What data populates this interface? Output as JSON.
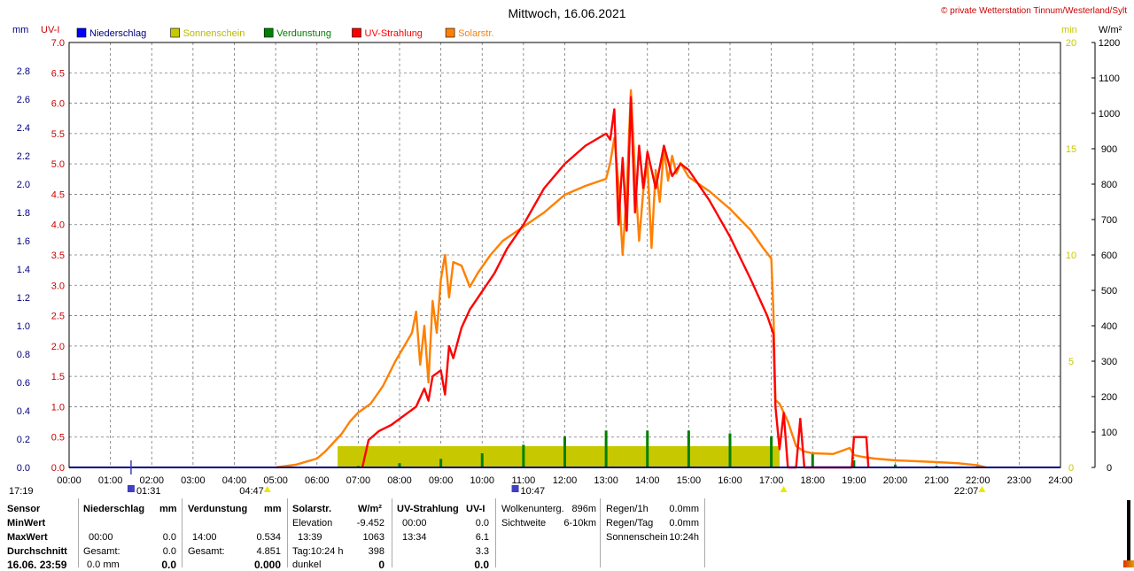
{
  "title": "Mittwoch, 16.06.2021",
  "copyright": "© private Wetterstation Tinnum/Westerland/Sylt",
  "units": {
    "left_outer": "mm",
    "left_inner": "UV-I",
    "right_inner": "min",
    "right_outer": "W/m²"
  },
  "legend": [
    {
      "label": "Niederschlag",
      "color": "#0000ff"
    },
    {
      "label": "Sonnenschein",
      "color": "#c8c800"
    },
    {
      "label": "Verdunstung",
      "color": "#008000"
    },
    {
      "label": "UV-Strahlung",
      "color": "#ff0000"
    },
    {
      "label": "Solarstr.",
      "color": "#ff8000"
    }
  ],
  "markers": [
    {
      "t": "17:19",
      "h": 17.3,
      "color": "#e8e800"
    },
    {
      "t": "01:31",
      "h": 1.5,
      "color": "#4040c0"
    },
    {
      "t": "04:47",
      "h": 4.8,
      "color": "#e8e800"
    },
    {
      "t": "10:47",
      "h": 10.8,
      "color": "#4040c0"
    },
    {
      "t": "22:07",
      "h": 22.1,
      "color": "#e8e800"
    }
  ],
  "chart_data": {
    "type": "line",
    "x_ticks": [
      "00:00",
      "01:00",
      "02:00",
      "03:00",
      "04:00",
      "05:00",
      "06:00",
      "07:00",
      "08:00",
      "09:00",
      "10:00",
      "11:00",
      "12:00",
      "13:00",
      "14:00",
      "15:00",
      "16:00",
      "17:00",
      "18:00",
      "19:00",
      "20:00",
      "21:00",
      "22:00",
      "23:00",
      "24:00"
    ],
    "axes": {
      "mm": {
        "ticks": [
          "0.0",
          "0.2",
          "0.4",
          "0.6",
          "0.8",
          "1.0",
          "1.2",
          "1.4",
          "1.6",
          "1.8",
          "2.0",
          "2.2",
          "2.4",
          "2.6",
          "2.8"
        ],
        "ylim": [
          0,
          3.0
        ],
        "color": "#000080"
      },
      "uv": {
        "ticks": [
          "0.0",
          "0.5",
          "1.0",
          "1.5",
          "2.0",
          "2.5",
          "3.0",
          "3.5",
          "4.0",
          "4.5",
          "5.0",
          "5.5",
          "6.0",
          "6.5",
          "7.0"
        ],
        "ylim": [
          0,
          7.0
        ],
        "color": "#cc0000"
      },
      "min": {
        "ticks": [
          "0",
          "5",
          "10",
          "15",
          "20"
        ],
        "ylim": [
          0,
          20
        ],
        "color": "#c8c800"
      },
      "wm2": {
        "ticks": [
          "0",
          "100",
          "200",
          "300",
          "400",
          "500",
          "600",
          "700",
          "800",
          "900",
          "1000",
          "1100",
          "1200"
        ],
        "ylim": [
          0,
          1200
        ],
        "color": "#000000"
      }
    },
    "series": [
      {
        "name": "Solarstr.",
        "unit": "W/m²",
        "color": "#ff8000",
        "points": [
          [
            5.0,
            0
          ],
          [
            5.5,
            8
          ],
          [
            6.0,
            25
          ],
          [
            6.2,
            45
          ],
          [
            6.4,
            70
          ],
          [
            6.6,
            95
          ],
          [
            6.8,
            130
          ],
          [
            7.0,
            155
          ],
          [
            7.3,
            180
          ],
          [
            7.6,
            230
          ],
          [
            7.9,
            300
          ],
          [
            8.1,
            340
          ],
          [
            8.3,
            380
          ],
          [
            8.4,
            440
          ],
          [
            8.5,
            290
          ],
          [
            8.6,
            400
          ],
          [
            8.7,
            240
          ],
          [
            8.8,
            470
          ],
          [
            8.9,
            380
          ],
          [
            9.0,
            530
          ],
          [
            9.1,
            600
          ],
          [
            9.2,
            480
          ],
          [
            9.3,
            580
          ],
          [
            9.5,
            570
          ],
          [
            9.7,
            510
          ],
          [
            9.9,
            550
          ],
          [
            10.2,
            600
          ],
          [
            10.5,
            640
          ],
          [
            11.0,
            680
          ],
          [
            11.5,
            720
          ],
          [
            12.0,
            770
          ],
          [
            12.5,
            795
          ],
          [
            13.0,
            815
          ],
          [
            13.1,
            860
          ],
          [
            13.2,
            930
          ],
          [
            13.3,
            800
          ],
          [
            13.4,
            600
          ],
          [
            13.5,
            780
          ],
          [
            13.6,
            1065
          ],
          [
            13.7,
            830
          ],
          [
            13.8,
            640
          ],
          [
            13.9,
            780
          ],
          [
            14.0,
            860
          ],
          [
            14.1,
            620
          ],
          [
            14.2,
            840
          ],
          [
            14.3,
            750
          ],
          [
            14.4,
            900
          ],
          [
            14.5,
            810
          ],
          [
            14.6,
            880
          ],
          [
            14.7,
            830
          ],
          [
            14.8,
            860
          ],
          [
            15.0,
            820
          ],
          [
            15.5,
            780
          ],
          [
            16.0,
            730
          ],
          [
            16.5,
            670
          ],
          [
            16.8,
            620
          ],
          [
            17.0,
            590
          ],
          [
            17.05,
            440
          ],
          [
            17.1,
            190
          ],
          [
            17.2,
            180
          ],
          [
            17.4,
            130
          ],
          [
            17.6,
            60
          ],
          [
            17.8,
            45
          ],
          [
            18.0,
            40
          ],
          [
            18.5,
            38
          ],
          [
            18.9,
            55
          ],
          [
            19.0,
            35
          ],
          [
            19.2,
            30
          ],
          [
            19.5,
            25
          ],
          [
            20.0,
            20
          ],
          [
            21.0,
            15
          ],
          [
            21.5,
            12
          ],
          [
            22.0,
            6
          ],
          [
            22.2,
            0
          ]
        ]
      },
      {
        "name": "UV-Strahlung",
        "unit": "UV-I",
        "color": "#ff0000",
        "points": [
          [
            7.1,
            0
          ],
          [
            7.25,
            0.45
          ],
          [
            7.5,
            0.6
          ],
          [
            7.8,
            0.7
          ],
          [
            8.0,
            0.8
          ],
          [
            8.2,
            0.9
          ],
          [
            8.4,
            1.0
          ],
          [
            8.6,
            1.3
          ],
          [
            8.7,
            1.1
          ],
          [
            8.8,
            1.5
          ],
          [
            9.0,
            1.6
          ],
          [
            9.1,
            1.2
          ],
          [
            9.2,
            2.0
          ],
          [
            9.3,
            1.8
          ],
          [
            9.5,
            2.3
          ],
          [
            9.7,
            2.6
          ],
          [
            10.0,
            2.9
          ],
          [
            10.3,
            3.2
          ],
          [
            10.6,
            3.6
          ],
          [
            11.0,
            4.0
          ],
          [
            11.5,
            4.6
          ],
          [
            12.0,
            5.0
          ],
          [
            12.5,
            5.3
          ],
          [
            13.0,
            5.5
          ],
          [
            13.1,
            5.4
          ],
          [
            13.2,
            5.9
          ],
          [
            13.3,
            4.0
          ],
          [
            13.4,
            5.1
          ],
          [
            13.5,
            3.9
          ],
          [
            13.6,
            6.1
          ],
          [
            13.7,
            4.2
          ],
          [
            13.8,
            5.3
          ],
          [
            13.9,
            4.6
          ],
          [
            14.0,
            5.2
          ],
          [
            14.2,
            4.6
          ],
          [
            14.4,
            5.3
          ],
          [
            14.6,
            4.8
          ],
          [
            14.8,
            5.0
          ],
          [
            15.0,
            4.9
          ],
          [
            15.5,
            4.4
          ],
          [
            16.0,
            3.8
          ],
          [
            16.5,
            3.1
          ],
          [
            16.9,
            2.5
          ],
          [
            17.05,
            2.2
          ],
          [
            17.1,
            1.0
          ],
          [
            17.2,
            0.3
          ],
          [
            17.3,
            0.9
          ],
          [
            17.4,
            0.0
          ],
          [
            17.6,
            0.0
          ],
          [
            17.7,
            0.8
          ],
          [
            17.8,
            0.0
          ],
          [
            18.95,
            0.0
          ],
          [
            19.0,
            0.5
          ],
          [
            19.3,
            0.5
          ],
          [
            19.35,
            0.0
          ]
        ]
      }
    ],
    "bars": [
      {
        "name": "Sonnenschein",
        "unit": "min",
        "from": 6.5,
        "to": 17.2,
        "value": 1.0
      },
      {
        "name": "Verdunstung",
        "unit": "mm",
        "hours": [
          1,
          2,
          3,
          4,
          5,
          6,
          7,
          8,
          9,
          10,
          11,
          12,
          13,
          14,
          15,
          16,
          17,
          18,
          19,
          20,
          21,
          22,
          23
        ],
        "values": [
          0.005,
          0.005,
          0.005,
          0.005,
          0.005,
          0.005,
          0.01,
          0.03,
          0.06,
          0.1,
          0.16,
          0.22,
          0.26,
          0.26,
          0.26,
          0.24,
          0.22,
          0.1,
          0.05,
          0.02,
          0.012,
          0.01,
          0.005
        ]
      }
    ],
    "grid": true
  },
  "table": {
    "col1": {
      "header": "Sensor",
      "rows": [
        "MinWert",
        "MaxWert",
        "Durchschnitt"
      ],
      "footer": "16.06. 23:59"
    },
    "col2": {
      "header": "Niederschlag",
      "unit": "mm",
      "rows": [
        [
          "",
          ""
        ],
        [
          "00:00",
          "0.0"
        ],
        [
          "Gesamt:",
          "0.0"
        ]
      ],
      "footer": [
        "0.0 mm",
        "0.0"
      ]
    },
    "col3": {
      "header": "Verdunstung",
      "unit": "mm",
      "rows": [
        [
          "",
          ""
        ],
        [
          "14:00",
          "0.534"
        ],
        [
          "Gesamt:",
          "4.851"
        ]
      ],
      "footer": [
        "",
        "0.000"
      ]
    },
    "col4": {
      "header": "Solarstr.",
      "unit": "W/m²",
      "rows": [
        [
          "Elevation",
          "-9.452"
        ],
        [
          "13:39",
          "1063"
        ],
        [
          "Tag:10:24 h",
          "398"
        ]
      ],
      "footer": [
        "dunkel",
        "0"
      ]
    },
    "col5": {
      "header": "UV-Strahlung",
      "unit": "UV-I",
      "rows": [
        [
          "00:00",
          "0.0"
        ],
        [
          "13:34",
          "6.1"
        ],
        [
          "",
          "3.3"
        ]
      ],
      "footer": [
        "",
        "0.0"
      ]
    },
    "col6": {
      "rows": [
        [
          "Wolkenunterg.",
          "896m"
        ],
        [
          "Sichtweite",
          "6-10km"
        ]
      ]
    },
    "col7": {
      "rows": [
        [
          "Regen/1h",
          "0.0mm"
        ],
        [
          "Regen/Tag",
          "0.0mm"
        ],
        [
          "Sonnenschein",
          "10:24h"
        ]
      ]
    }
  }
}
